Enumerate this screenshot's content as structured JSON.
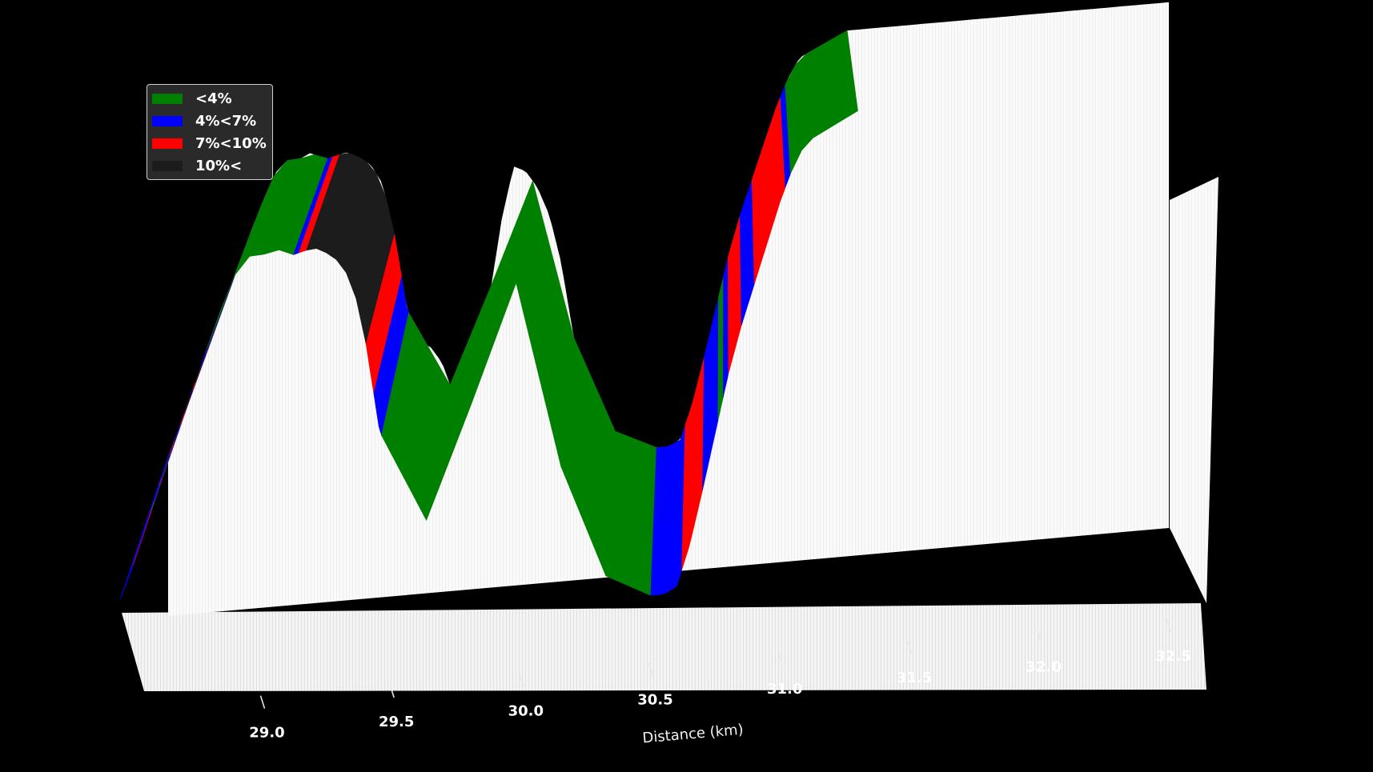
{
  "chart_data": {
    "type": "area",
    "style": "3d-extruded-elevation-profile",
    "xlabel": "Distance (km)",
    "ylabel": "",
    "title": "",
    "xticks": [
      29.0,
      29.5,
      30.0,
      30.5,
      31.0,
      31.5,
      32.0,
      32.5
    ],
    "xlim": [
      28.55,
      32.75
    ],
    "grid": false,
    "legend_placement": "top-left",
    "legend": [
      {
        "label": "<4%",
        "color": "#008000"
      },
      {
        "label": "4%<7%",
        "color": "#0000ff"
      },
      {
        "label": "7%<10%",
        "color": "#ff0000"
      },
      {
        "label": "10%<",
        "color": "#1c1c1c"
      }
    ],
    "profile": [
      {
        "x": 28.55,
        "y": 0
      },
      {
        "x": 28.6,
        "y": 10
      },
      {
        "x": 28.65,
        "y": 21
      },
      {
        "x": 28.7,
        "y": 33
      },
      {
        "x": 28.75,
        "y": 44
      },
      {
        "x": 28.8,
        "y": 54
      },
      {
        "x": 28.85,
        "y": 65
      },
      {
        "x": 28.9,
        "y": 76
      },
      {
        "x": 28.95,
        "y": 86
      },
      {
        "x": 29.0,
        "y": 95
      },
      {
        "x": 29.05,
        "y": 99
      },
      {
        "x": 29.1,
        "y": 99
      },
      {
        "x": 29.15,
        "y": 101
      },
      {
        "x": 29.2,
        "y": 98
      },
      {
        "x": 29.25,
        "y": 99
      },
      {
        "x": 29.3,
        "y": 100
      },
      {
        "x": 29.35,
        "y": 98
      },
      {
        "x": 29.4,
        "y": 95
      },
      {
        "x": 29.45,
        "y": 88
      },
      {
        "x": 29.5,
        "y": 70
      },
      {
        "x": 29.55,
        "y": 45
      },
      {
        "x": 29.6,
        "y": 32
      },
      {
        "x": 29.65,
        "y": 30
      },
      {
        "x": 29.7,
        "y": 24
      },
      {
        "x": 29.75,
        "y": 12
      },
      {
        "x": 29.8,
        "y": 10
      },
      {
        "x": 29.85,
        "y": 22
      },
      {
        "x": 29.9,
        "y": 46
      },
      {
        "x": 29.95,
        "y": 72
      },
      {
        "x": 30.0,
        "y": 90
      },
      {
        "x": 30.05,
        "y": 88
      },
      {
        "x": 30.1,
        "y": 82
      },
      {
        "x": 30.15,
        "y": 72
      },
      {
        "x": 30.2,
        "y": 55
      },
      {
        "x": 30.25,
        "y": 30
      },
      {
        "x": 30.3,
        "y": 10
      },
      {
        "x": 30.35,
        "y": 2
      },
      {
        "x": 30.4,
        "y": -4
      },
      {
        "x": 30.45,
        "y": -6
      },
      {
        "x": 30.5,
        "y": -8
      },
      {
        "x": 30.55,
        "y": -10
      },
      {
        "x": 30.6,
        "y": -12
      },
      {
        "x": 30.65,
        "y": -12
      },
      {
        "x": 30.7,
        "y": -10
      },
      {
        "x": 30.75,
        "y": 2
      },
      {
        "x": 30.8,
        "y": 18
      },
      {
        "x": 30.85,
        "y": 35
      },
      {
        "x": 30.9,
        "y": 52
      },
      {
        "x": 30.95,
        "y": 66
      },
      {
        "x": 31.0,
        "y": 78
      },
      {
        "x": 31.05,
        "y": 90
      },
      {
        "x": 31.1,
        "y": 102
      },
      {
        "x": 31.15,
        "y": 112
      },
      {
        "x": 31.2,
        "y": 119
      },
      {
        "x": 31.25,
        "y": 121
      },
      {
        "x": 31.3,
        "y": 123
      },
      {
        "x": 31.35,
        "y": 125
      },
      {
        "x": 31.4,
        "y": 127
      }
    ],
    "gradient_bands": [
      {
        "from": 28.55,
        "to": 28.6,
        "class": "4%<7%"
      },
      {
        "from": 28.6,
        "to": 28.67,
        "class": "7%<10%"
      },
      {
        "from": 28.67,
        "to": 28.68,
        "class": "<4%"
      },
      {
        "from": 28.68,
        "to": 28.7,
        "class": "4%<7%"
      },
      {
        "from": 28.7,
        "to": 28.71,
        "class": "7%<10%"
      },
      {
        "from": 28.71,
        "to": 28.74,
        "class": "10%<"
      },
      {
        "from": 28.74,
        "to": 28.76,
        "class": "7%<10%"
      },
      {
        "from": 28.76,
        "to": 28.78,
        "class": "4%<7%"
      },
      {
        "from": 28.78,
        "to": 28.8,
        "class": "7%<10%"
      },
      {
        "from": 28.8,
        "to": 28.82,
        "class": "10%<"
      },
      {
        "from": 28.82,
        "to": 28.83,
        "class": "4%<7%"
      },
      {
        "from": 28.83,
        "to": 28.84,
        "class": "7%<10%"
      },
      {
        "from": 28.84,
        "to": 28.86,
        "class": "10%<"
      },
      {
        "from": 28.86,
        "to": 28.88,
        "class": "4%<7%"
      },
      {
        "from": 28.88,
        "to": 29.22,
        "class": "<4%"
      },
      {
        "from": 29.22,
        "to": 29.24,
        "class": "4%<7%"
      },
      {
        "from": 29.24,
        "to": 29.27,
        "class": "7%<10%"
      },
      {
        "from": 29.27,
        "to": 29.5,
        "class": "10%<"
      },
      {
        "from": 29.5,
        "to": 29.53,
        "class": "7%<10%"
      },
      {
        "from": 29.53,
        "to": 29.56,
        "class": "4%<7%"
      },
      {
        "from": 29.56,
        "to": 30.6,
        "class": "<4%"
      },
      {
        "from": 30.6,
        "to": 30.72,
        "class": "4%<7%"
      },
      {
        "from": 30.72,
        "to": 30.8,
        "class": "7%<10%"
      },
      {
        "from": 30.8,
        "to": 30.86,
        "class": "4%<7%"
      },
      {
        "from": 30.86,
        "to": 30.88,
        "class": "<4%"
      },
      {
        "from": 30.88,
        "to": 30.9,
        "class": "4%<7%"
      },
      {
        "from": 30.9,
        "to": 30.95,
        "class": "7%<10%"
      },
      {
        "from": 30.95,
        "to": 31.0,
        "class": "4%<7%"
      },
      {
        "from": 31.0,
        "to": 31.12,
        "class": "7%<10%"
      },
      {
        "from": 31.12,
        "to": 31.14,
        "class": "4%<7%"
      },
      {
        "from": 31.14,
        "to": 31.4,
        "class": "<4%"
      }
    ]
  }
}
